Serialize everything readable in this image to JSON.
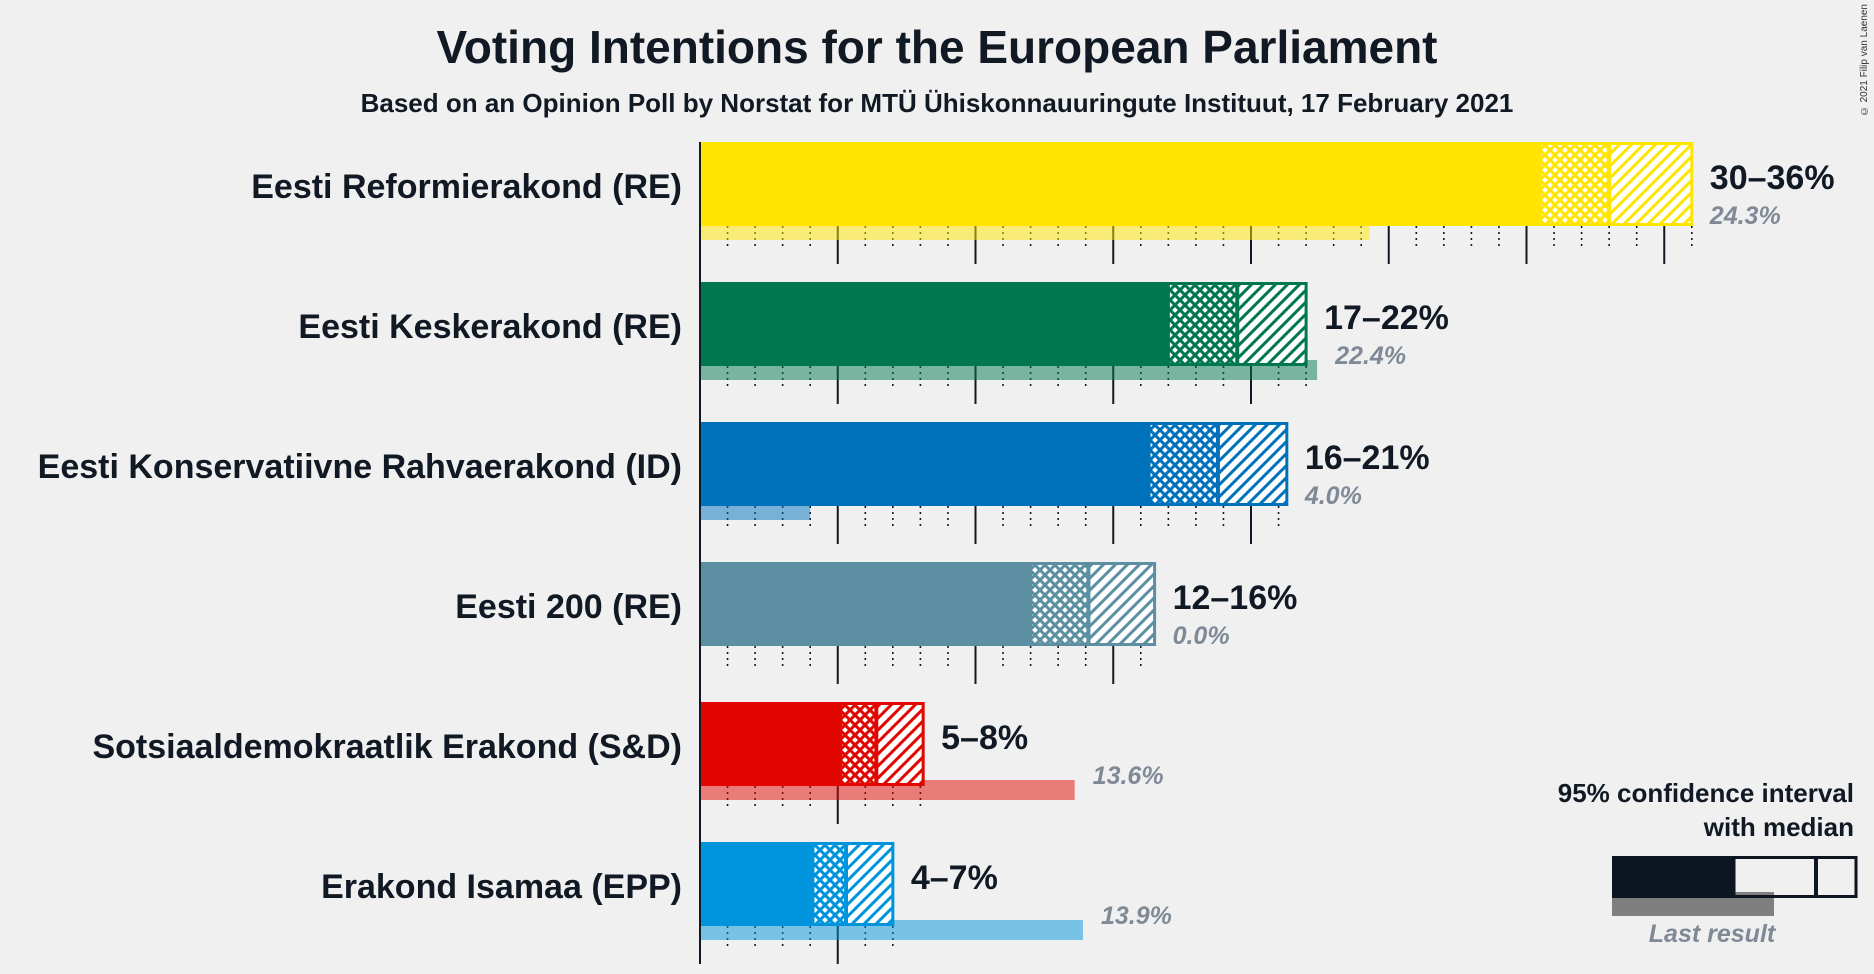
{
  "title": "Voting Intentions for the European Parliament",
  "subtitle": "Based on an Opinion Poll by Norstat for MTÜ Ühiskonnauuringute Instituut, 17 February 2021",
  "copyright": "© 2021 Filip van Laenen",
  "legend": {
    "title_line1": "95% confidence interval",
    "title_line2": "with median",
    "last_result": "Last result"
  },
  "chart_data": {
    "type": "bar",
    "orientation": "horizontal",
    "x_range": [
      0,
      36.5
    ],
    "gridlines": {
      "major_every": 5,
      "minor_every": 1
    },
    "series": [
      {
        "name": "Eesti Reformierakond (RE)",
        "color": "#ffe500",
        "ci_low": 30.5,
        "median": 33.0,
        "ci_high": 36.0,
        "inner_low": 30.5,
        "inner_high": 33.0,
        "range_label": "30–36%",
        "last_result": 24.3,
        "last_label": "24.3%"
      },
      {
        "name": "Eesti Keskerakond (RE)",
        "color": "#00774f",
        "ci_low": 17.0,
        "median": 19.5,
        "ci_high": 22.0,
        "inner_low": 17.0,
        "inner_high": 19.5,
        "range_label": "17–22%",
        "last_result": 22.4,
        "last_label": "22.4%"
      },
      {
        "name": "Eesti Konservatiivne Rahvaerakond (ID)",
        "color": "#0072bc",
        "ci_low": 16.3,
        "median": 18.8,
        "ci_high": 21.3,
        "inner_low": 16.3,
        "inner_high": 18.8,
        "range_label": "16–21%",
        "last_result": 4.0,
        "last_label": "4.0%"
      },
      {
        "name": "Eesti 200 (RE)",
        "color": "#5b8fa1",
        "ci_low": 12.0,
        "median": 14.1,
        "ci_high": 16.5,
        "inner_low": 12.0,
        "inner_high": 14.1,
        "range_label": "12–16%",
        "last_result": 0.0,
        "last_label": "0.0%"
      },
      {
        "name": "Sotsiaaldemokraatlik Erakond (S&D)",
        "color": "#e10600",
        "ci_low": 5.1,
        "median": 6.4,
        "ci_high": 8.1,
        "inner_low": 5.1,
        "inner_high": 6.4,
        "range_label": "5–8%",
        "last_result": 13.6,
        "last_label": "13.6%"
      },
      {
        "name": "Erakond Isamaa (EPP)",
        "color": "#0094dc",
        "ci_low": 4.1,
        "median": 5.3,
        "ci_high": 7.0,
        "inner_low": 4.1,
        "inner_high": 5.3,
        "range_label": "4–7%",
        "last_result": 13.9,
        "last_label": "13.9%"
      }
    ]
  }
}
